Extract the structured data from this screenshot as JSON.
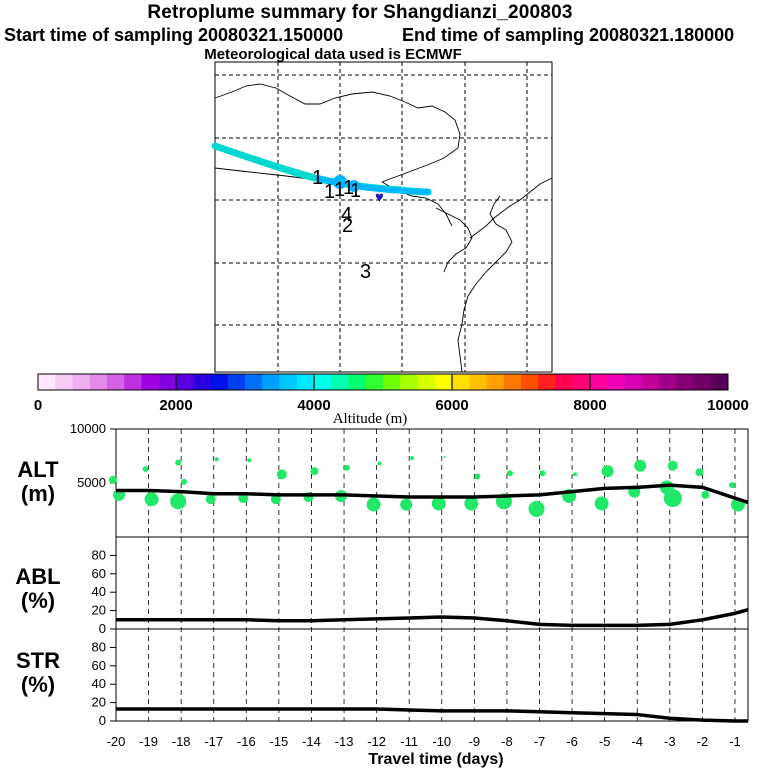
{
  "header": {
    "title": "Retroplume summary for Shangdianzi_200803",
    "start_label": "Start time of sampling 20080321.150000",
    "end_label": "End time of sampling 20080321.180000",
    "met_label": "Meteorological data used is ECMWF"
  },
  "map": {
    "number_labels": [
      "1",
      "1",
      "1",
      "1",
      "1",
      "4",
      "2",
      "3"
    ],
    "marker_label": "♥"
  },
  "colorbar": {
    "axis_label": "Altitude (m)",
    "ticks": [
      "0",
      "2000",
      "4000",
      "6000",
      "8000",
      "10000"
    ],
    "colors": [
      "#ffe8ff",
      "#f6ccf6",
      "#eeb0f0",
      "#e48ae8",
      "#d462e4",
      "#be30e0",
      "#a000e0",
      "#8000e0",
      "#5a00e0",
      "#2c00e0",
      "#0010e8",
      "#0040f0",
      "#0070f8",
      "#00a0ff",
      "#00c8ff",
      "#00e8ff",
      "#00ffe8",
      "#00ffb0",
      "#00ff70",
      "#30ff30",
      "#70ff00",
      "#a8ff00",
      "#d8ff00",
      "#ffff00",
      "#ffe000",
      "#ffc000",
      "#ffa000",
      "#ff7800",
      "#ff5000",
      "#ff2020",
      "#ff0050",
      "#ff0078",
      "#ff00a0",
      "#f000b4",
      "#d800b4",
      "#c00098",
      "#a00088",
      "#880078",
      "#700068",
      "#580058"
    ]
  },
  "ylabels": {
    "alt": [
      "ALT",
      "(m)"
    ],
    "abl": [
      "ABL",
      "(%)"
    ],
    "str": [
      "STR",
      "(%)"
    ]
  },
  "chart_data": [
    {
      "type": "line",
      "name": "altitude",
      "xlabel": "Travel time (days)",
      "ylabel": "ALT (m)",
      "x_ticks": [
        "-20",
        "-19",
        "-18",
        "-17",
        "-16",
        "-15",
        "-14",
        "-13",
        "-12",
        "-11",
        "-10",
        "-9",
        "-8",
        "-7",
        "-6",
        "-5",
        "-4",
        "-3",
        "-2",
        "-1"
      ],
      "y_ticks": [
        "5000",
        "10000"
      ],
      "ylim": [
        0,
        10000
      ],
      "xlim": [
        -20,
        -0.6
      ],
      "x": [
        -20,
        -19,
        -18,
        -17,
        -16,
        -15,
        -14,
        -13,
        -12,
        -11,
        -10,
        -9,
        -8,
        -7,
        -6,
        -5,
        -4,
        -3,
        -2,
        -1,
        -0.6
      ],
      "values": [
        4300,
        4300,
        4200,
        4000,
        4000,
        3900,
        3900,
        3900,
        3800,
        3700,
        3700,
        3700,
        3800,
        3900,
        4200,
        4500,
        4600,
        4800,
        4600,
        3600,
        3200
      ],
      "clusters": {
        "x": [
          -20,
          -20,
          -19,
          -19,
          -18,
          -18,
          -18,
          -17,
          -17,
          -16,
          -16,
          -15,
          -15,
          -14,
          -14,
          -13,
          -13,
          -12,
          -12,
          -11,
          -11,
          -10,
          -10,
          -9,
          -9,
          -8,
          -8,
          -7,
          -7,
          -6,
          -6,
          -5,
          -5,
          -4,
          -4,
          -3,
          -3,
          -3,
          -2,
          -2,
          -1,
          -1
        ],
        "y": [
          5300,
          3900,
          6300,
          3500,
          6900,
          5100,
          3300,
          7200,
          3500,
          7100,
          3600,
          5800,
          3500,
          6100,
          3700,
          6400,
          3800,
          6800,
          3000,
          7300,
          3000,
          7400,
          3100,
          5600,
          3100,
          5900,
          3300,
          5900,
          2600,
          5800,
          3800,
          6100,
          3100,
          6600,
          4200,
          6600,
          4600,
          3600,
          6000,
          3900,
          4800,
          3000
        ],
        "sizes": [
          4,
          6,
          3,
          7,
          3,
          3,
          8,
          2,
          5,
          2,
          5,
          5,
          5,
          4,
          5,
          3,
          6,
          2,
          7,
          2,
          6,
          1,
          7,
          3,
          7,
          3,
          8,
          3,
          8,
          2,
          7,
          6,
          7,
          6,
          6,
          5,
          7,
          9,
          4,
          4,
          3,
          7
        ]
      }
    },
    {
      "type": "line",
      "name": "abl",
      "ylabel": "ABL (%)",
      "y_ticks": [
        "0",
        "20",
        "40",
        "60",
        "80"
      ],
      "ylim": [
        0,
        100
      ],
      "x": [
        -20,
        -19,
        -18,
        -17,
        -16,
        -15,
        -14,
        -13,
        -12,
        -11,
        -10,
        -9,
        -8,
        -7,
        -6,
        -5,
        -4,
        -3,
        -2,
        -1,
        -0.6
      ],
      "values": [
        10,
        10,
        10,
        10,
        10,
        9,
        9,
        10,
        11,
        12,
        13,
        12,
        9,
        5,
        4,
        4,
        4,
        5,
        10,
        17,
        21
      ]
    },
    {
      "type": "line",
      "name": "str",
      "ylabel": "STR (%)",
      "y_ticks": [
        "0",
        "20",
        "40",
        "60",
        "80"
      ],
      "ylim": [
        0,
        100
      ],
      "x": [
        -20,
        -19,
        -18,
        -17,
        -16,
        -15,
        -14,
        -13,
        -12,
        -11,
        -10,
        -9,
        -8,
        -7,
        -6,
        -5,
        -4,
        -3,
        -2,
        -1,
        -0.6
      ],
      "values": [
        13,
        13,
        13,
        13,
        13,
        13,
        13,
        13,
        13,
        12,
        11,
        11,
        11,
        10,
        9,
        8,
        7,
        3,
        1,
        0,
        0
      ]
    }
  ]
}
